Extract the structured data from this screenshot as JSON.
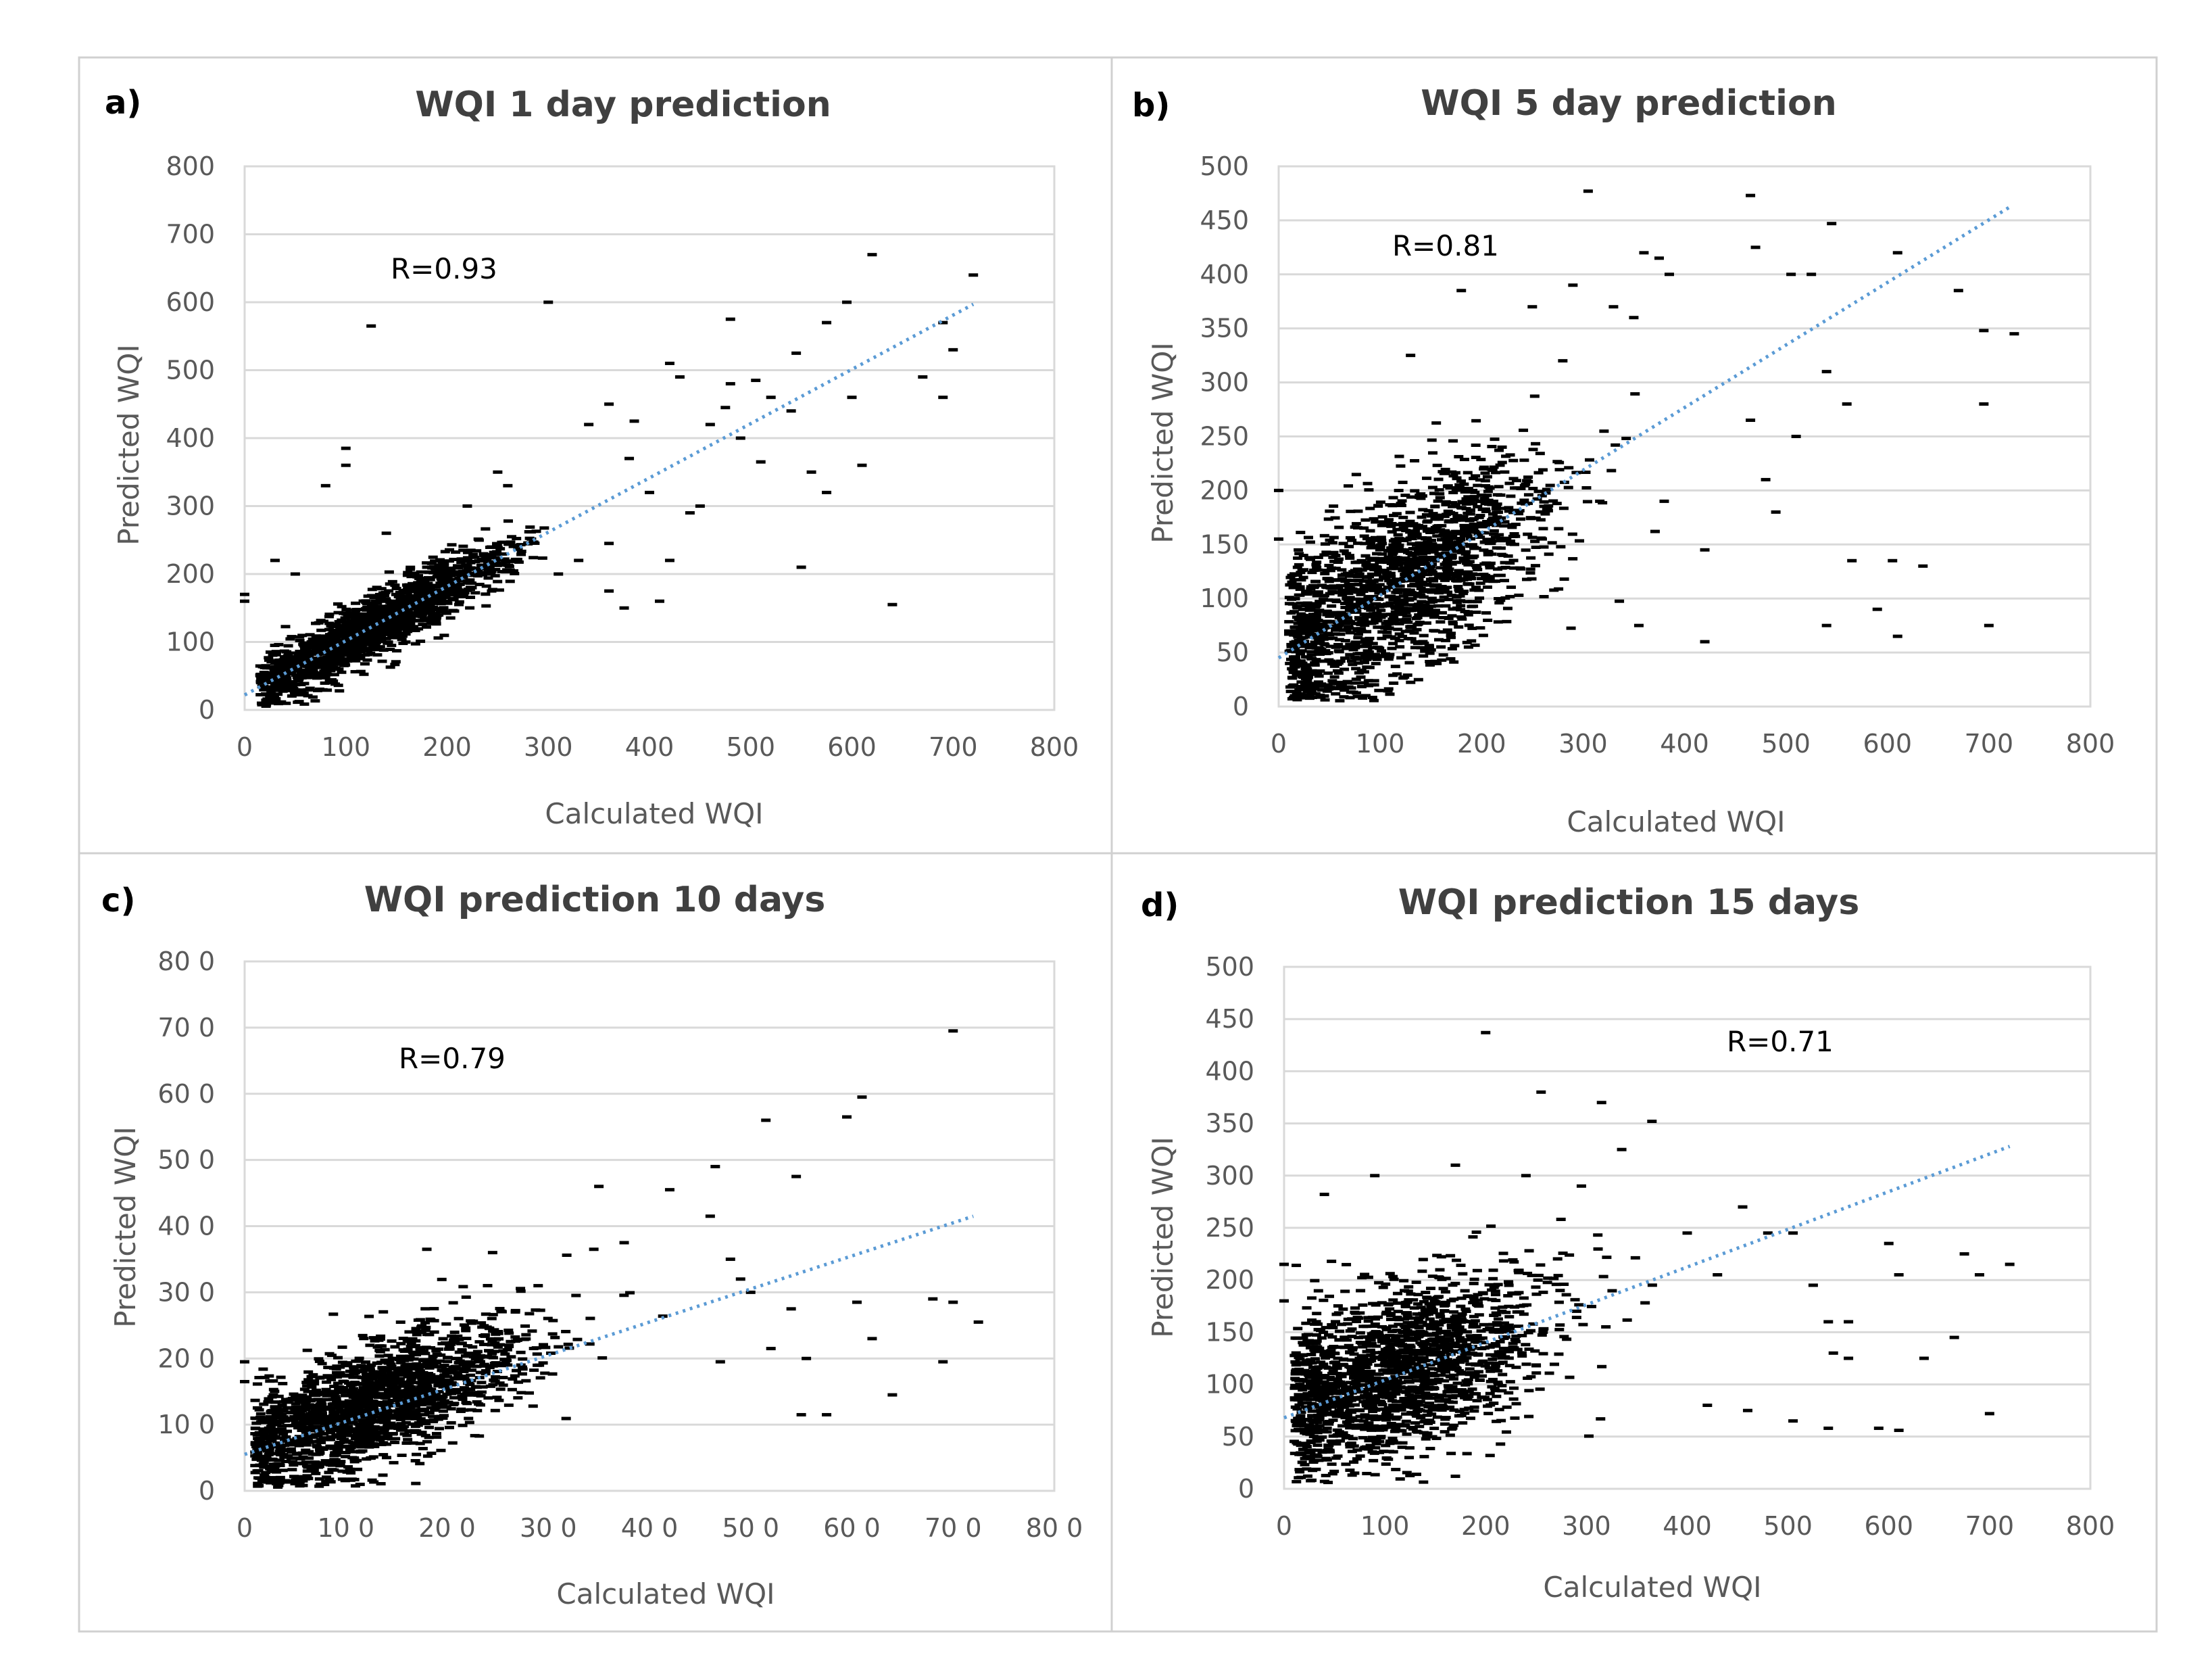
{
  "chart_data": [
    {
      "type": "scatter",
      "panel": "a)",
      "title": "WQI 1 day prediction",
      "xlabel": "Calculated WQI",
      "ylabel": "Predicted WQI",
      "xlim": [
        0,
        800
      ],
      "ylim": [
        0,
        800
      ],
      "x_ticks": [
        0,
        100,
        200,
        300,
        400,
        500,
        600,
        700,
        800
      ],
      "y_ticks": [
        0,
        100,
        200,
        300,
        400,
        500,
        600,
        700,
        800
      ],
      "x_tick_labels": [
        "0",
        "100",
        "200",
        "300",
        "400",
        "500",
        "600",
        "700",
        "800"
      ],
      "y_tick_labels": [
        "0",
        "100",
        "200",
        "300",
        "400",
        "500",
        "600",
        "700",
        "800"
      ],
      "r_label": "R=0.93",
      "trendline": {
        "x0": 0,
        "y0": 22,
        "x1": 720,
        "y1": 597
      },
      "cluster": {
        "count": 1700,
        "x_center": 130,
        "x_spread": 70,
        "x_min": 15,
        "x_max": 300,
        "slope": 0.8,
        "intercept": 22,
        "noise": 22
      },
      "points": [
        [
          0,
          170
        ],
        [
          0,
          160
        ],
        [
          125,
          565
        ],
        [
          100,
          385
        ],
        [
          100,
          360
        ],
        [
          300,
          600
        ],
        [
          620,
          670
        ],
        [
          720,
          640
        ],
        [
          595,
          600
        ],
        [
          690,
          570
        ],
        [
          700,
          530
        ],
        [
          670,
          490
        ],
        [
          690,
          460
        ],
        [
          600,
          460
        ],
        [
          610,
          360
        ],
        [
          575,
          570
        ],
        [
          480,
          575
        ],
        [
          545,
          525
        ],
        [
          505,
          485
        ],
        [
          480,
          480
        ],
        [
          475,
          445
        ],
        [
          520,
          460
        ],
        [
          540,
          440
        ],
        [
          560,
          350
        ],
        [
          575,
          320
        ],
        [
          420,
          510
        ],
        [
          430,
          490
        ],
        [
          460,
          420
        ],
        [
          490,
          400
        ],
        [
          510,
          365
        ],
        [
          340,
          420
        ],
        [
          360,
          450
        ],
        [
          385,
          425
        ],
        [
          380,
          370
        ],
        [
          400,
          320
        ],
        [
          360,
          245
        ],
        [
          360,
          175
        ],
        [
          375,
          150
        ],
        [
          410,
          160
        ],
        [
          420,
          220
        ],
        [
          440,
          290
        ],
        [
          450,
          300
        ],
        [
          550,
          210
        ],
        [
          640,
          155
        ],
        [
          310,
          200
        ],
        [
          330,
          220
        ],
        [
          250,
          350
        ],
        [
          260,
          330
        ],
        [
          220,
          300
        ],
        [
          180,
          210
        ],
        [
          80,
          330
        ],
        [
          140,
          260
        ],
        [
          50,
          200
        ],
        [
          30,
          220
        ]
      ]
    },
    {
      "type": "scatter",
      "panel": "b)",
      "title": "WQI 5 day prediction",
      "xlabel": "Calculated WQI",
      "ylabel": "Predicted WQI",
      "xlim": [
        0,
        800
      ],
      "ylim": [
        0,
        500
      ],
      "x_ticks": [
        0,
        100,
        200,
        300,
        400,
        500,
        600,
        700,
        800
      ],
      "y_ticks": [
        0,
        50,
        100,
        150,
        200,
        250,
        300,
        350,
        400,
        450,
        500
      ],
      "x_tick_labels": [
        "0",
        "100",
        "200",
        "300",
        "400",
        "500",
        "600",
        "700",
        "800"
      ],
      "y_tick_labels": [
        "0",
        "50",
        "100",
        "150",
        "200",
        "250",
        "300",
        "350",
        "400",
        "450",
        "500"
      ],
      "r_label": "R=0.81",
      "trendline": {
        "x0": 0,
        "y0": 45,
        "x1": 720,
        "y1": 462
      },
      "cluster": {
        "count": 1800,
        "x_center": 120,
        "x_spread": 75,
        "x_min": 10,
        "x_max": 380,
        "slope": 0.52,
        "intercept": 50,
        "noise": 42
      },
      "points": [
        [
          305,
          477
        ],
        [
          465,
          473
        ],
        [
          545,
          447
        ],
        [
          360,
          420
        ],
        [
          375,
          415
        ],
        [
          470,
          425
        ],
        [
          385,
          400
        ],
        [
          505,
          400
        ],
        [
          525,
          400
        ],
        [
          610,
          420
        ],
        [
          670,
          385
        ],
        [
          695,
          348
        ],
        [
          725,
          345
        ],
        [
          560,
          280
        ],
        [
          540,
          310
        ],
        [
          695,
          280
        ],
        [
          510,
          250
        ],
        [
          465,
          265
        ],
        [
          480,
          210
        ],
        [
          490,
          180
        ],
        [
          540,
          75
        ],
        [
          565,
          135
        ],
        [
          605,
          135
        ],
        [
          635,
          130
        ],
        [
          590,
          90
        ],
        [
          610,
          65
        ],
        [
          700,
          75
        ],
        [
          420,
          60
        ],
        [
          355,
          75
        ],
        [
          420,
          145
        ],
        [
          380,
          190
        ],
        [
          330,
          370
        ],
        [
          350,
          360
        ],
        [
          290,
          390
        ],
        [
          280,
          320
        ],
        [
          180,
          385
        ],
        [
          130,
          325
        ],
        [
          250,
          370
        ],
        [
          0,
          200
        ],
        [
          0,
          155
        ]
      ]
    },
    {
      "type": "scatter",
      "panel": "c)",
      "title": "WQI prediction 10 days",
      "xlabel": "Calculated WQI",
      "ylabel": "Predicted WQI",
      "xlim": [
        0,
        800
      ],
      "ylim": [
        0,
        800
      ],
      "x_ticks": [
        0,
        100,
        200,
        300,
        400,
        500,
        600,
        700,
        800
      ],
      "y_ticks": [
        0,
        100,
        200,
        300,
        400,
        500,
        600,
        700,
        800
      ],
      "x_tick_labels": [
        "0",
        "10 0",
        "20 0",
        "30 0",
        "40 0",
        "50 0",
        "60 0",
        "70 0",
        "80 0"
      ],
      "y_tick_labels": [
        "0",
        "10 0",
        "20 0",
        "30 0",
        "40 0",
        "50 0",
        "60 0",
        "70 0",
        "80 0"
      ],
      "r_label": "R=0.79",
      "trendline": {
        "x0": 0,
        "y0": 55,
        "x1": 720,
        "y1": 415
      },
      "cluster": {
        "count": 1800,
        "x_center": 125,
        "x_spread": 75,
        "x_min": 10,
        "x_max": 420,
        "slope": 0.55,
        "intercept": 60,
        "noise": 45
      },
      "points": [
        [
          700,
          695
        ],
        [
          610,
          595
        ],
        [
          595,
          565
        ],
        [
          515,
          560
        ],
        [
          545,
          475
        ],
        [
          465,
          490
        ],
        [
          420,
          455
        ],
        [
          350,
          460
        ],
        [
          460,
          415
        ],
        [
          480,
          350
        ],
        [
          490,
          320
        ],
        [
          375,
          375
        ],
        [
          345,
          365
        ],
        [
          605,
          285
        ],
        [
          680,
          290
        ],
        [
          700,
          285
        ],
        [
          725,
          255
        ],
        [
          620,
          230
        ],
        [
          640,
          145
        ],
        [
          690,
          195
        ],
        [
          540,
          275
        ],
        [
          555,
          200
        ],
        [
          550,
          115
        ],
        [
          575,
          115
        ],
        [
          500,
          300
        ],
        [
          520,
          215
        ],
        [
          470,
          195
        ],
        [
          0,
          195
        ],
        [
          0,
          165
        ],
        [
          180,
          365
        ],
        [
          245,
          360
        ],
        [
          290,
          310
        ]
      ]
    },
    {
      "type": "scatter",
      "panel": "d)",
      "title": "WQI prediction 15 days",
      "xlabel": "Calculated WQI",
      "ylabel": "Predicted WQI",
      "xlim": [
        0,
        800
      ],
      "ylim": [
        0,
        500
      ],
      "x_ticks": [
        0,
        100,
        200,
        300,
        400,
        500,
        600,
        700,
        800
      ],
      "y_ticks": [
        0,
        50,
        100,
        150,
        200,
        250,
        300,
        350,
        400,
        450,
        500
      ],
      "x_tick_labels": [
        "0",
        "100",
        "200",
        "300",
        "400",
        "500",
        "600",
        "700",
        "800"
      ],
      "y_tick_labels": [
        "0",
        "50",
        "100",
        "150",
        "200",
        "250",
        "300",
        "350",
        "400",
        "450",
        "500"
      ],
      "r_label": "R=0.71",
      "trendline": {
        "x0": 0,
        "y0": 68,
        "x1": 720,
        "y1": 328
      },
      "cluster": {
        "count": 1800,
        "x_center": 110,
        "x_spread": 75,
        "x_min": 10,
        "x_max": 400,
        "slope": 0.3,
        "intercept": 80,
        "noise": 40
      },
      "points": [
        [
          200,
          437
        ],
        [
          255,
          380
        ],
        [
          315,
          370
        ],
        [
          335,
          325
        ],
        [
          365,
          352
        ],
        [
          90,
          300
        ],
        [
          40,
          282
        ],
        [
          170,
          310
        ],
        [
          240,
          300
        ],
        [
          295,
          290
        ],
        [
          400,
          245
        ],
        [
          430,
          205
        ],
        [
          455,
          270
        ],
        [
          480,
          245
        ],
        [
          505,
          245
        ],
        [
          525,
          195
        ],
        [
          540,
          160
        ],
        [
          560,
          160
        ],
        [
          560,
          125
        ],
        [
          545,
          130
        ],
        [
          600,
          235
        ],
        [
          610,
          205
        ],
        [
          665,
          145
        ],
        [
          635,
          125
        ],
        [
          675,
          225
        ],
        [
          690,
          205
        ],
        [
          720,
          215
        ],
        [
          700,
          72
        ],
        [
          610,
          56
        ],
        [
          590,
          58
        ],
        [
          540,
          58
        ],
        [
          505,
          65
        ],
        [
          460,
          75
        ],
        [
          420,
          80
        ],
        [
          170,
          12
        ],
        [
          70,
          15
        ],
        [
          0,
          215
        ],
        [
          0,
          180
        ]
      ]
    }
  ]
}
